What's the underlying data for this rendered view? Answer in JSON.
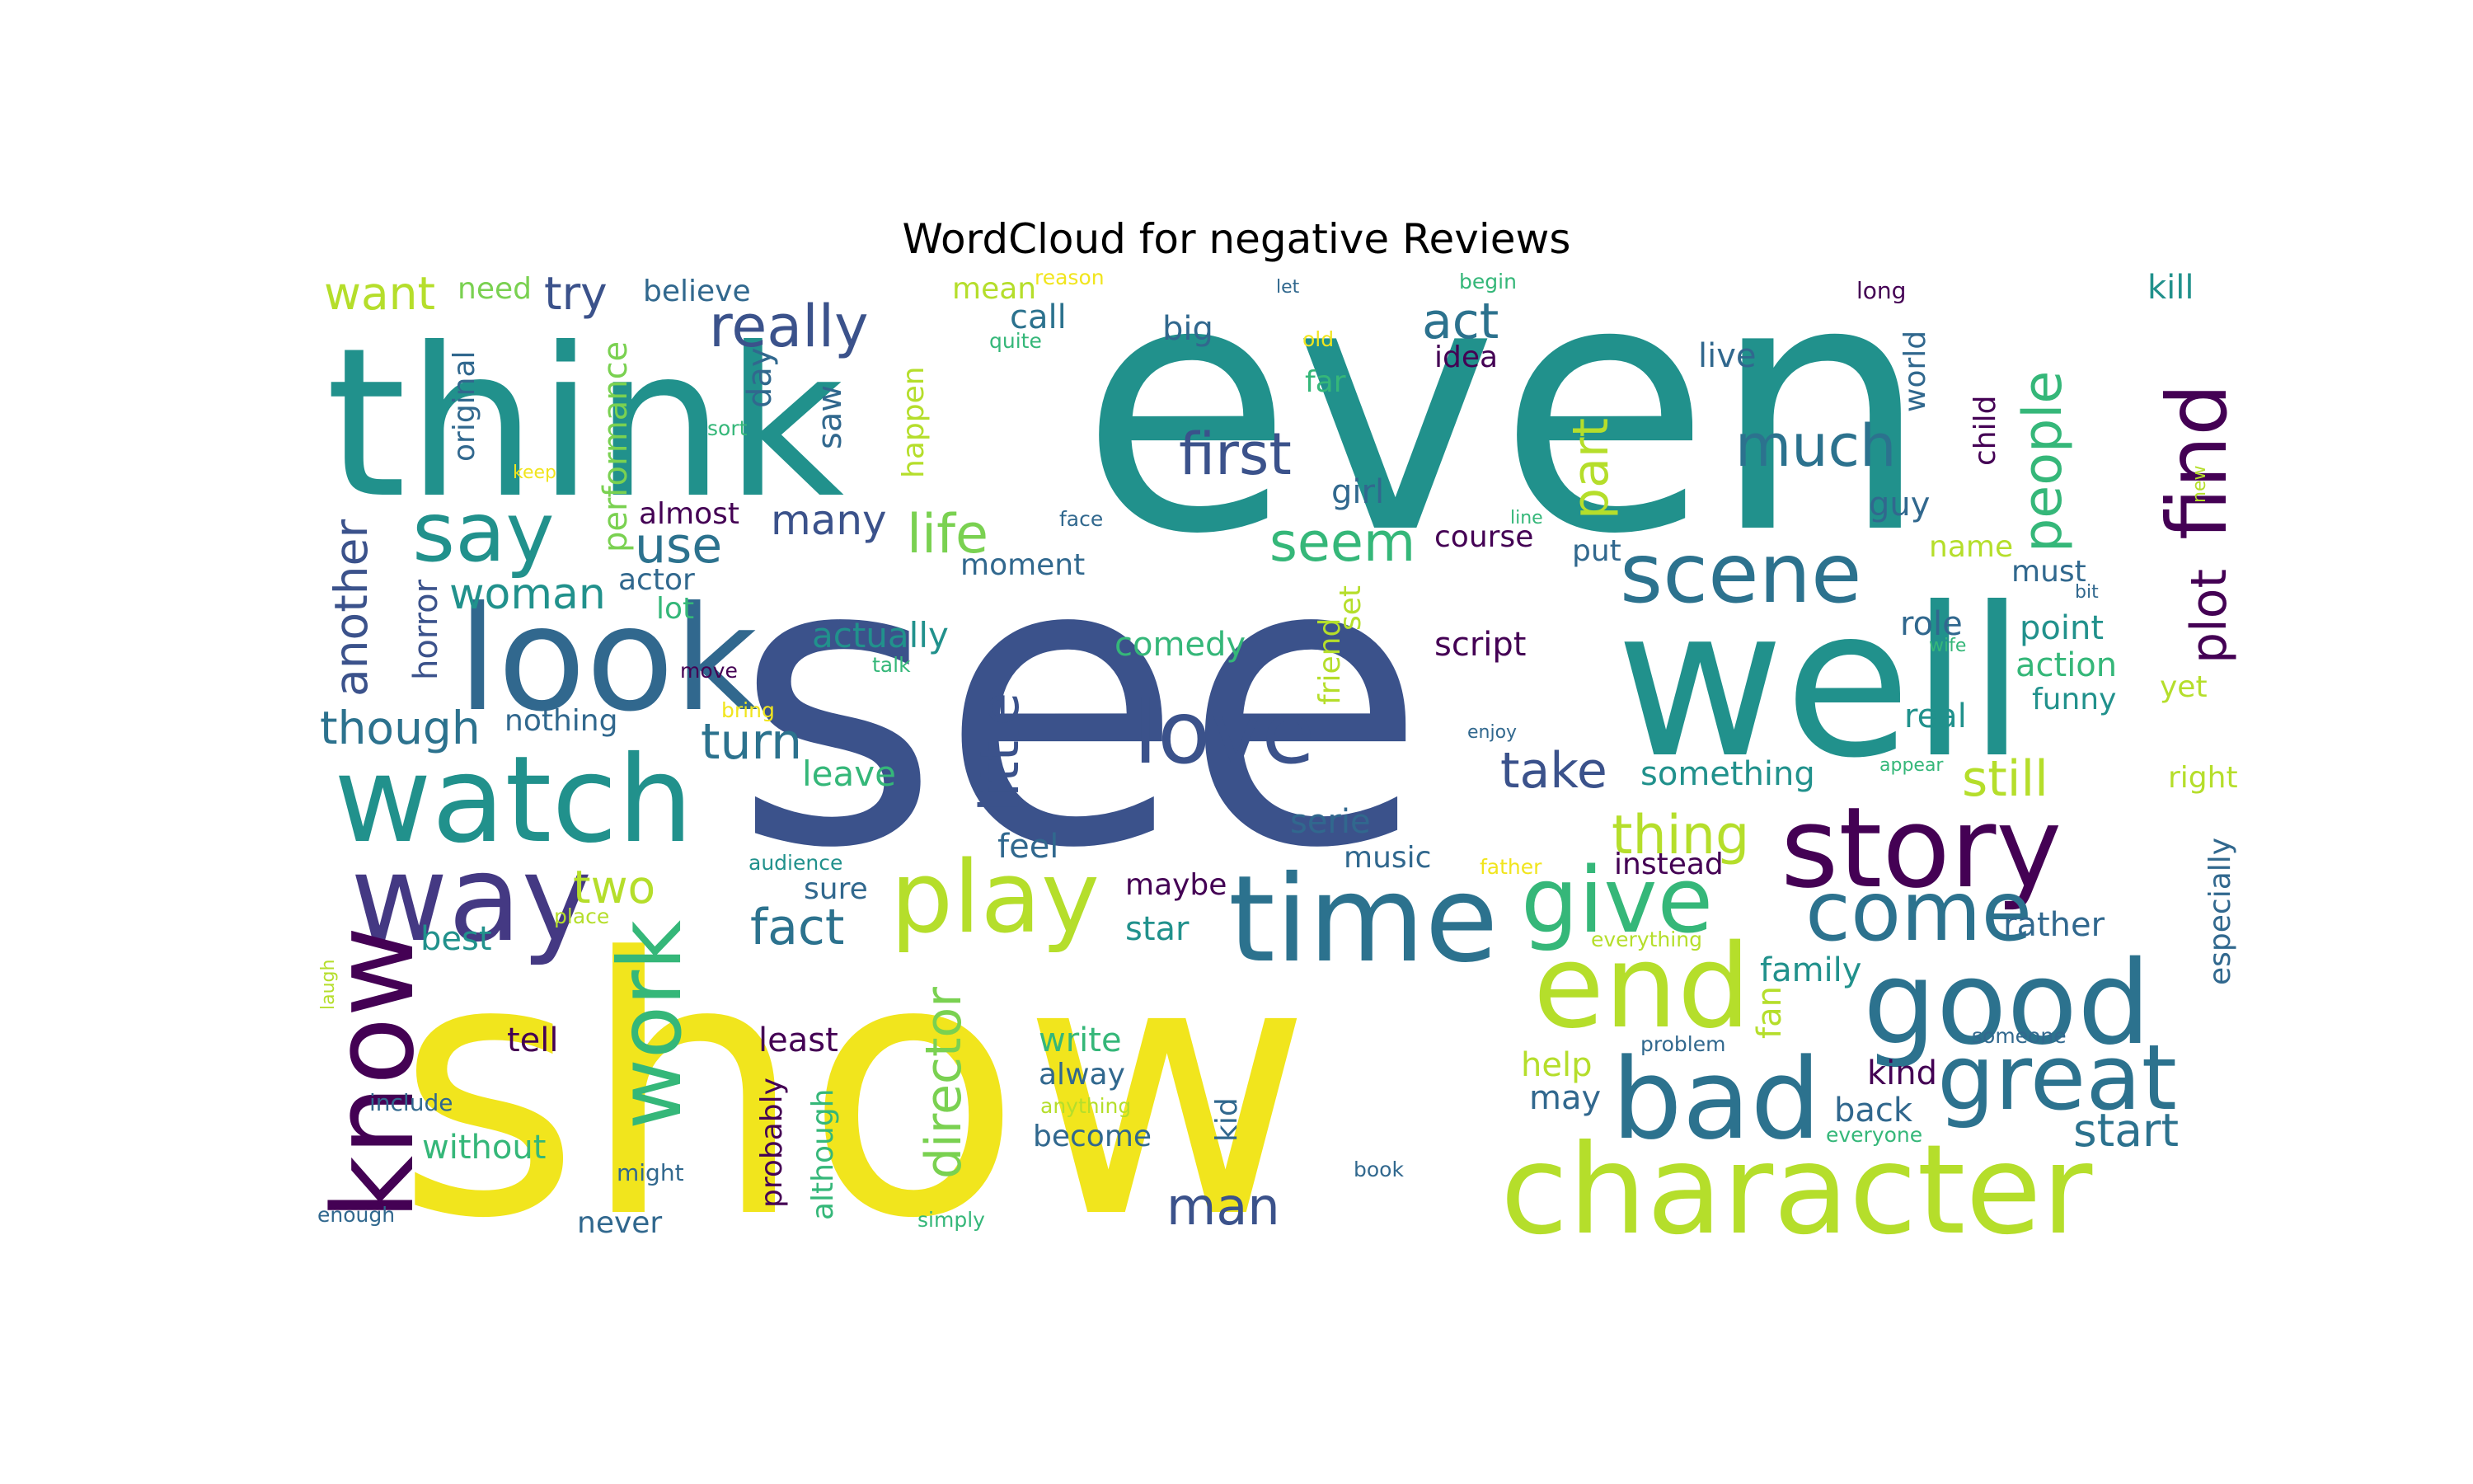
{
  "title": "WordCloud for negative Reviews",
  "palette": {
    "purple": "#440154",
    "indigo": "#3b528b",
    "blue": "#31688e",
    "teal": "#21918c",
    "green": "#35b779",
    "lime": "#b5de2b",
    "yellow": "#f1e51d"
  },
  "words": [
    {
      "text": "see",
      "color": "#3b528b"
    },
    {
      "text": "show",
      "color": "#f1e51d"
    },
    {
      "text": "even",
      "color": "#21918c"
    },
    {
      "text": "think",
      "color": "#21918c"
    },
    {
      "text": "well",
      "color": "#21918c"
    },
    {
      "text": "look",
      "color": "#31688e"
    },
    {
      "text": "watch",
      "color": "#21918c"
    },
    {
      "text": "way",
      "color": "#443983"
    },
    {
      "text": "know",
      "color": "#440154"
    },
    {
      "text": "time",
      "color": "#2c728e"
    },
    {
      "text": "story",
      "color": "#440154"
    },
    {
      "text": "good",
      "color": "#2c728e"
    },
    {
      "text": "character",
      "color": "#b5de2b"
    },
    {
      "text": "bad",
      "color": "#2c728e"
    },
    {
      "text": "great",
      "color": "#2c728e"
    },
    {
      "text": "play",
      "color": "#b5de2b"
    },
    {
      "text": "give",
      "color": "#35b779"
    },
    {
      "text": "end",
      "color": "#b5de2b"
    },
    {
      "text": "come",
      "color": "#2c728e"
    },
    {
      "text": "scene",
      "color": "#2c728e"
    },
    {
      "text": "love",
      "color": "#3b528b"
    },
    {
      "text": "find",
      "color": "#440154"
    },
    {
      "text": "say",
      "color": "#21918c"
    },
    {
      "text": "work",
      "color": "#35b779"
    },
    {
      "text": "first",
      "color": "#3b528b"
    },
    {
      "text": "much",
      "color": "#2c728e"
    },
    {
      "text": "really",
      "color": "#3b528b"
    },
    {
      "text": "people",
      "color": "#35b779"
    },
    {
      "text": "plot",
      "color": "#440154"
    },
    {
      "text": "life",
      "color": "#7ad151"
    },
    {
      "text": "little",
      "color": "#3b528b"
    },
    {
      "text": "part",
      "color": "#b5de2b"
    },
    {
      "text": "act",
      "color": "#2c728e"
    },
    {
      "text": "seem",
      "color": "#35b779"
    },
    {
      "text": "take",
      "color": "#3b528b"
    },
    {
      "text": "thing",
      "color": "#b5de2b"
    },
    {
      "text": "still",
      "color": "#b5de2b"
    },
    {
      "text": "fact",
      "color": "#2c728e"
    },
    {
      "text": "two",
      "color": "#b5de2b"
    },
    {
      "text": "turn",
      "color": "#2c728e"
    },
    {
      "text": "many",
      "color": "#3b528b"
    },
    {
      "text": "use",
      "color": "#2c728e"
    },
    {
      "text": "woman",
      "color": "#21918c"
    },
    {
      "text": "another",
      "color": "#3b528b"
    },
    {
      "text": "though",
      "color": "#2c728e"
    },
    {
      "text": "want",
      "color": "#b5de2b"
    },
    {
      "text": "try",
      "color": "#3b528b"
    },
    {
      "text": "director",
      "color": "#7ad151"
    },
    {
      "text": "man",
      "color": "#3b528b"
    },
    {
      "text": "start",
      "color": "#2c728e"
    },
    {
      "text": "horror",
      "color": "#3b528b"
    },
    {
      "text": "performance",
      "color": "#7ad151"
    },
    {
      "text": "original",
      "color": "#31688e"
    },
    {
      "text": "day",
      "color": "#31688e"
    },
    {
      "text": "saw",
      "color": "#31688e"
    },
    {
      "text": "happen",
      "color": "#b5de2b"
    },
    {
      "text": "believe",
      "color": "#31688e"
    },
    {
      "text": "need",
      "color": "#7ad151"
    },
    {
      "text": "mean",
      "color": "#b5de2b"
    },
    {
      "text": "call",
      "color": "#2c728e"
    },
    {
      "text": "big",
      "color": "#31688e"
    },
    {
      "text": "idea",
      "color": "#440154"
    },
    {
      "text": "far",
      "color": "#35b779"
    },
    {
      "text": "live",
      "color": "#31688e"
    },
    {
      "text": "world",
      "color": "#31688e"
    },
    {
      "text": "child",
      "color": "#440154"
    },
    {
      "text": "kill",
      "color": "#21918c"
    },
    {
      "text": "long",
      "color": "#440154"
    },
    {
      "text": "almost",
      "color": "#440154"
    },
    {
      "text": "actor",
      "color": "#31688e"
    },
    {
      "text": "lot",
      "color": "#35b779"
    },
    {
      "text": "nothing",
      "color": "#31688e"
    },
    {
      "text": "actually",
      "color": "#21918c"
    },
    {
      "text": "leave",
      "color": "#35b779"
    },
    {
      "text": "moment",
      "color": "#31688e"
    },
    {
      "text": "girl",
      "color": "#31688e"
    },
    {
      "text": "course",
      "color": "#440154"
    },
    {
      "text": "put",
      "color": "#31688e"
    },
    {
      "text": "guy",
      "color": "#31688e"
    },
    {
      "text": "name",
      "color": "#b5de2b"
    },
    {
      "text": "must",
      "color": "#31688e"
    },
    {
      "text": "comedy",
      "color": "#35b779"
    },
    {
      "text": "script",
      "color": "#440154"
    },
    {
      "text": "friend",
      "color": "#b5de2b"
    },
    {
      "text": "set",
      "color": "#b5de2b"
    },
    {
      "text": "role",
      "color": "#31688e"
    },
    {
      "text": "point",
      "color": "#21918c"
    },
    {
      "text": "action",
      "color": "#35b779"
    },
    {
      "text": "funny",
      "color": "#21918c"
    },
    {
      "text": "yet",
      "color": "#b5de2b"
    },
    {
      "text": "real",
      "color": "#21918c"
    },
    {
      "text": "something",
      "color": "#21918c"
    },
    {
      "text": "right",
      "color": "#b5de2b"
    },
    {
      "text": "especially",
      "color": "#31688e"
    },
    {
      "text": "serie",
      "color": "#31688e"
    },
    {
      "text": "music",
      "color": "#31688e"
    },
    {
      "text": "instead",
      "color": "#440154"
    },
    {
      "text": "feel",
      "color": "#31688e"
    },
    {
      "text": "sure",
      "color": "#31688e"
    },
    {
      "text": "maybe",
      "color": "#440154"
    },
    {
      "text": "star",
      "color": "#21918c"
    },
    {
      "text": "best",
      "color": "#21918c"
    },
    {
      "text": "rather",
      "color": "#31688e"
    },
    {
      "text": "family",
      "color": "#21918c"
    },
    {
      "text": "fan",
      "color": "#b5de2b"
    },
    {
      "text": "help",
      "color": "#b5de2b"
    },
    {
      "text": "may",
      "color": "#31688e"
    },
    {
      "text": "kind",
      "color": "#440154"
    },
    {
      "text": "back",
      "color": "#31688e"
    },
    {
      "text": "tell",
      "color": "#440154"
    },
    {
      "text": "least",
      "color": "#440154"
    },
    {
      "text": "write",
      "color": "#35b779"
    },
    {
      "text": "alway",
      "color": "#31688e"
    },
    {
      "text": "become",
      "color": "#31688e"
    },
    {
      "text": "although",
      "color": "#35b779"
    },
    {
      "text": "probably",
      "color": "#440154"
    },
    {
      "text": "kid",
      "color": "#31688e"
    },
    {
      "text": "without",
      "color": "#35b779"
    },
    {
      "text": "never",
      "color": "#31688e"
    },
    {
      "text": "include",
      "color": "#31688e"
    },
    {
      "text": "might",
      "color": "#31688e"
    },
    {
      "text": "enough",
      "color": "#31688e"
    },
    {
      "text": "simply",
      "color": "#35b779"
    },
    {
      "text": "book",
      "color": "#31688e"
    },
    {
      "text": "anything",
      "color": "#b5de2b"
    },
    {
      "text": "problem",
      "color": "#31688e"
    },
    {
      "text": "someone",
      "color": "#31688e"
    },
    {
      "text": "everyone",
      "color": "#35b779"
    },
    {
      "text": "everything",
      "color": "#b5de2b"
    },
    {
      "text": "father",
      "color": "#f1e51d"
    },
    {
      "text": "audience",
      "color": "#21918c"
    },
    {
      "text": "place",
      "color": "#b5de2b"
    },
    {
      "text": "laugh",
      "color": "#b5de2b"
    },
    {
      "text": "move",
      "color": "#440154"
    },
    {
      "text": "talk",
      "color": "#35b779"
    },
    {
      "text": "bring",
      "color": "#f1e51d"
    },
    {
      "text": "enjoy",
      "color": "#31688e"
    },
    {
      "text": "appear",
      "color": "#35b779"
    },
    {
      "text": "wife",
      "color": "#35b779"
    },
    {
      "text": "bit",
      "color": "#31688e"
    },
    {
      "text": "new",
      "color": "#b5de2b"
    },
    {
      "text": "line",
      "color": "#35b779"
    },
    {
      "text": "face",
      "color": "#31688e"
    },
    {
      "text": "keep",
      "color": "#f1e51d"
    },
    {
      "text": "sort",
      "color": "#35b779"
    },
    {
      "text": "quite",
      "color": "#35b779"
    },
    {
      "text": "reason",
      "color": "#f1e51d"
    },
    {
      "text": "old",
      "color": "#f1e51d"
    },
    {
      "text": "let",
      "color": "#31688e"
    },
    {
      "text": "begin",
      "color": "#35b779"
    }
  ]
}
